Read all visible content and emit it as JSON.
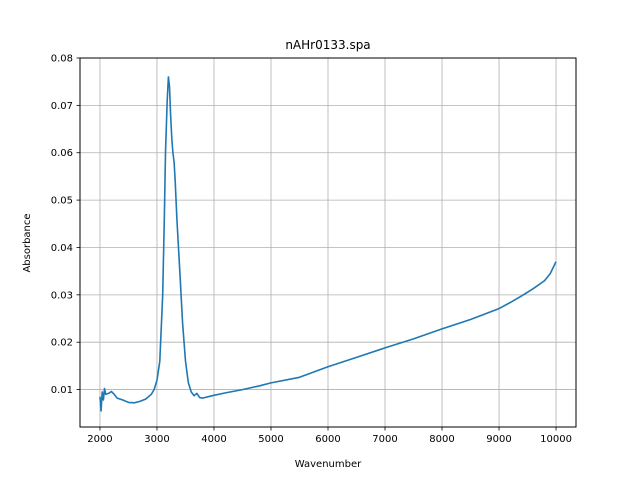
{
  "chart_data": {
    "type": "line",
    "title": "nAHr0133.spa",
    "xlabel": "Wavenumber",
    "ylabel": "Absorbance",
    "xlim": [
      1650,
      10350
    ],
    "ylim": [
      0.0021,
      0.08
    ],
    "grid": true,
    "x_ticks": [
      2000,
      3000,
      4000,
      5000,
      6000,
      7000,
      8000,
      9000,
      10000
    ],
    "x_tick_labels": [
      "2000",
      "3000",
      "4000",
      "5000",
      "6000",
      "7000",
      "8000",
      "9000",
      "10000"
    ],
    "y_ticks": [
      0.01,
      0.02,
      0.03,
      0.04,
      0.05,
      0.06,
      0.07,
      0.08
    ],
    "y_tick_labels": [
      "0.01",
      "0.02",
      "0.03",
      "0.04",
      "0.05",
      "0.06",
      "0.07",
      "0.08"
    ],
    "series": [
      {
        "color": "#1f77b4",
        "x": [
          2000,
          2020,
          2040,
          2060,
          2080,
          2100,
          2150,
          2200,
          2250,
          2300,
          2400,
          2500,
          2600,
          2700,
          2800,
          2900,
          2950,
          3000,
          3050,
          3100,
          3130,
          3150,
          3180,
          3200,
          3220,
          3240,
          3260,
          3280,
          3300,
          3320,
          3350,
          3400,
          3450,
          3500,
          3550,
          3600,
          3650,
          3700,
          3750,
          3800,
          3900,
          4000,
          4200,
          4500,
          4800,
          5000,
          5500,
          6000,
          6500,
          7000,
          7500,
          8000,
          8500,
          9000,
          9200,
          9400,
          9600,
          9800,
          9900,
          10000
        ],
        "y": [
          0.0085,
          0.0055,
          0.0095,
          0.0078,
          0.0102,
          0.009,
          0.0092,
          0.0096,
          0.009,
          0.0082,
          0.0078,
          0.0073,
          0.0072,
          0.0075,
          0.008,
          0.009,
          0.01,
          0.012,
          0.016,
          0.03,
          0.047,
          0.06,
          0.071,
          0.076,
          0.074,
          0.068,
          0.063,
          0.06,
          0.058,
          0.054,
          0.046,
          0.035,
          0.024,
          0.016,
          0.0115,
          0.0095,
          0.0087,
          0.0092,
          0.0083,
          0.0082,
          0.0085,
          0.0088,
          0.0093,
          0.01,
          0.0108,
          0.0114,
          0.0126,
          0.0148,
          0.0168,
          0.0188,
          0.0207,
          0.0228,
          0.0248,
          0.0271,
          0.0284,
          0.0298,
          0.0313,
          0.033,
          0.0345,
          0.037
        ]
      }
    ]
  }
}
